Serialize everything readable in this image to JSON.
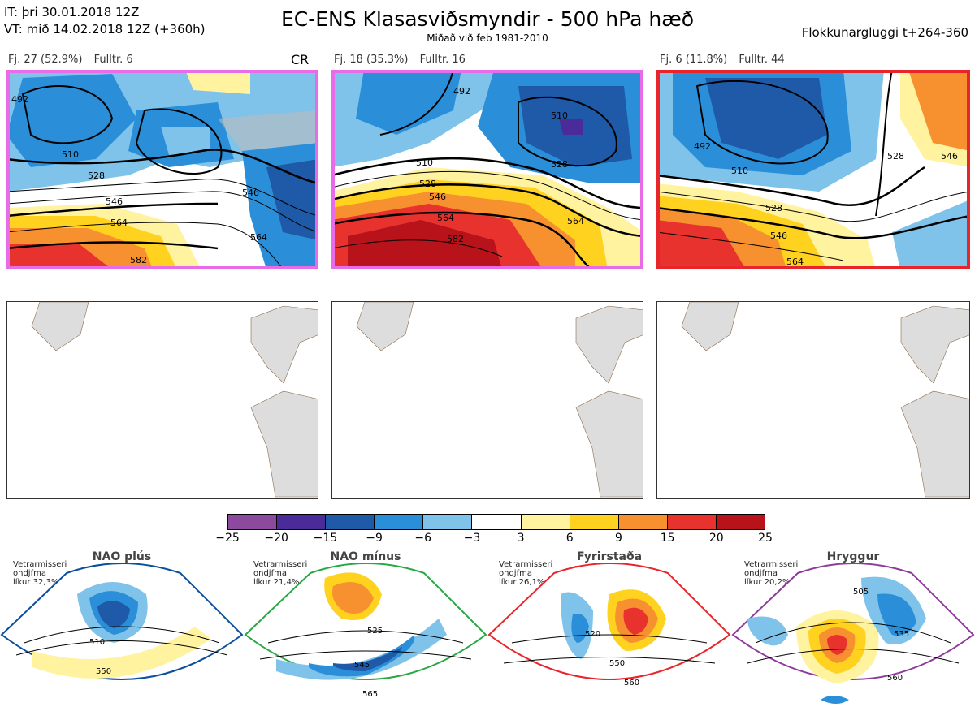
{
  "header": {
    "it_line": "IT: þri 30.01.2018 12Z",
    "vt_line": "VT: mið 14.02.2018 12Z  (+360h)",
    "title": "EC-ENS Klasasviðsmyndir - 500 hPa hæð",
    "subtitle": "Miðað við feb 1981-2010",
    "window": "Flokkunargluggi t+264-360"
  },
  "clusters": [
    {
      "fj": "Fj. 27 (52.9%)",
      "fulltr": "Fulltr. 6",
      "tag": "CR",
      "frame_color": "#e86be8",
      "contour_labels": [
        "492",
        "510",
        "528",
        "546",
        "564",
        "582",
        "528",
        "546",
        "564"
      ]
    },
    {
      "fj": "Fj. 18 (35.3%)",
      "fulltr": "Fulltr. 16",
      "tag": "",
      "frame_color": "#e86be8",
      "contour_labels": [
        "492",
        "510",
        "528",
        "546",
        "564",
        "582",
        "510",
        "528",
        "546",
        "564",
        "492"
      ]
    },
    {
      "fj": "Fj. 6 (11.8%)",
      "fulltr": "Fulltr. 44",
      "tag": "",
      "frame_color": "#e8252a",
      "contour_labels": [
        "492",
        "510",
        "528",
        "546",
        "564",
        "528",
        "546"
      ]
    }
  ],
  "colorbar": {
    "colors": [
      "#8b4a9e",
      "#4b2b9a",
      "#1f5aa8",
      "#2a8fd8",
      "#7fc3ea",
      "#ffffff",
      "#fff3a0",
      "#ffd21f",
      "#f7902f",
      "#e8322e",
      "#b8121a"
    ],
    "ticks": [
      "−25",
      "−20",
      "−15",
      "−9",
      "−6",
      "−3",
      "3",
      "6",
      "9",
      "15",
      "20",
      "25"
    ]
  },
  "regimes": [
    {
      "name": "NAO plús",
      "note1": "Vetrarmisseri",
      "note2": "ondjfma",
      "note3": "líkur 32,3%",
      "color": "#0a4f9e",
      "labels": [
        "510",
        "550"
      ]
    },
    {
      "name": "NAO mínus",
      "note1": "Vetrarmisseri",
      "note2": "ondjfma",
      "note3": "líkur 21,4%",
      "color": "#27a844",
      "labels": [
        "525",
        "545",
        "565"
      ]
    },
    {
      "name": "Fyrirstaða",
      "note1": "Vetrarmisseri",
      "note2": "ondjfma",
      "note3": "líkur 26,1%",
      "color": "#e8252a",
      "labels": [
        "520",
        "550",
        "560"
      ]
    },
    {
      "name": "Hryggur",
      "note1": "Vetrarmisseri",
      "note2": "ondjfma",
      "note3": "líkur 20,2%",
      "color": "#8e3a9a",
      "labels": [
        "505",
        "535",
        "560"
      ]
    }
  ]
}
